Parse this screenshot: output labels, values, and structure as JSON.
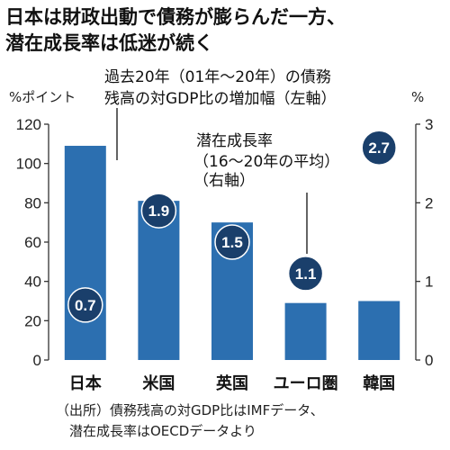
{
  "title_lines": [
    "日本は財政出動で債務が膨らんだ一方、",
    "潜在成長率は低迷が続く"
  ],
  "left_unit": "%ポイント",
  "right_unit": "%",
  "annotation_bar": [
    "過去20年（01年～20年）の債務",
    "残高の対GDP比の増加幅（左軸）"
  ],
  "annotation_dot": [
    "潜在成長率",
    "（16～20年の平均）",
    "（右軸）"
  ],
  "source_lines": [
    "（出所）債務残高の対GDP比はIMFデータ、",
    "潜在成長率はOECDデータより"
  ],
  "colors": {
    "bar": "#2c6fb0",
    "bubble": "#1a3f6b",
    "axis": "#333333",
    "grid": "#bbbbbb"
  },
  "chart_data": {
    "type": "bar",
    "categories": [
      "日本",
      "米国",
      "英国",
      "ユーロ圏",
      "韓国"
    ],
    "series": [
      {
        "values": [
          109,
          81,
          70,
          29,
          30
        ],
        "axis": "left",
        "mark": "bar"
      },
      {
        "values": [
          0.7,
          1.9,
          1.5,
          1.1,
          2.7
        ],
        "axis": "right",
        "mark": "labeled-dot"
      }
    ],
    "y_left": {
      "ticks": [
        "0",
        "20",
        "40",
        "60",
        "80",
        "100",
        "120"
      ],
      "range": [
        0,
        120
      ]
    },
    "y_right": {
      "ticks": [
        "0",
        "1",
        "2",
        "3"
      ],
      "range": [
        0,
        3
      ]
    },
    "grid": false,
    "legend": "none"
  }
}
